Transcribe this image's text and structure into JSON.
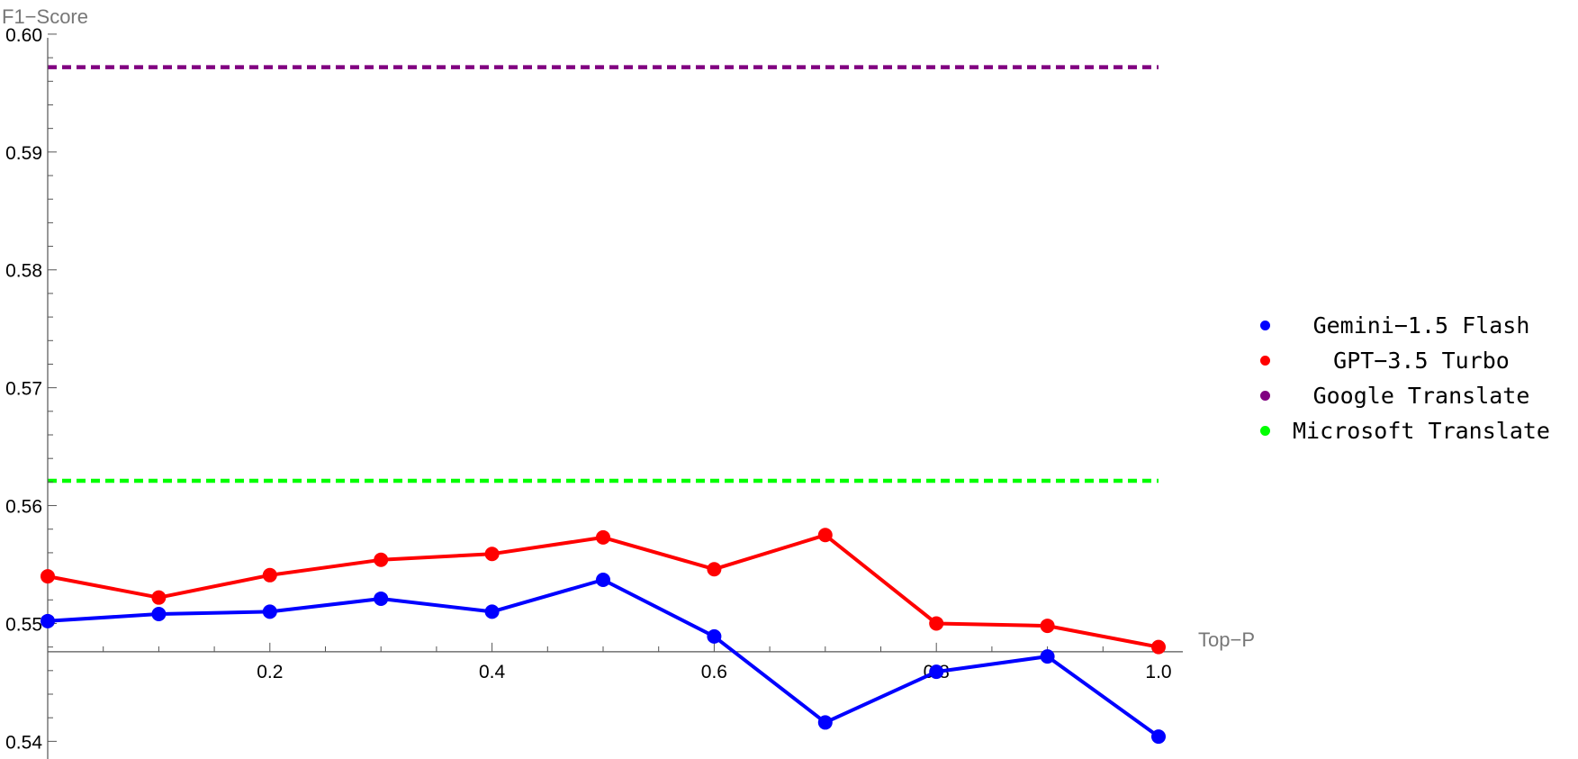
{
  "chart_data": {
    "type": "line",
    "xlabel": "Top−P",
    "ylabel": "F1−Score",
    "xlim": [
      0.0,
      1.0
    ],
    "ylim": [
      0.5385,
      0.6003
    ],
    "x_ticks": [
      0.2,
      0.4,
      0.6,
      0.8,
      1.0
    ],
    "x_tick_labels": [
      "0.2",
      "0.4",
      "0.6",
      "0.8",
      "1.0"
    ],
    "y_ticks": [
      0.54,
      0.55,
      0.56,
      0.57,
      0.58,
      0.59,
      0.6
    ],
    "y_tick_labels": [
      "0.54",
      "0.55",
      "0.56",
      "0.57",
      "0.58",
      "0.59",
      "0.60"
    ],
    "x_axis_crossing_y": 0.5476,
    "grid": false,
    "legend_position": "right",
    "x": [
      0.0,
      0.1,
      0.2,
      0.3,
      0.4,
      0.5,
      0.6,
      0.7,
      0.8,
      0.9,
      1.0
    ],
    "series": [
      {
        "name": "Gemini−1.5 Flash",
        "color": "#0000ff",
        "style": "line-markers",
        "values": [
          0.5502,
          0.5508,
          0.551,
          0.5521,
          0.551,
          0.5537,
          0.5489,
          0.5416,
          0.5459,
          0.5472,
          0.5404
        ]
      },
      {
        "name": "GPT−3.5 Turbo",
        "color": "#ff0000",
        "style": "line-markers",
        "values": [
          0.554,
          0.5522,
          0.5541,
          0.5554,
          0.5559,
          0.5573,
          0.5546,
          0.5575,
          0.55,
          0.5498,
          0.548
        ]
      },
      {
        "name": "Google Translate",
        "color": "#800080",
        "style": "dashed-hline",
        "value": 0.5972
      },
      {
        "name": "Microsoft Translate",
        "color": "#00ff00",
        "style": "dashed-hline",
        "value": 0.5621
      }
    ]
  }
}
